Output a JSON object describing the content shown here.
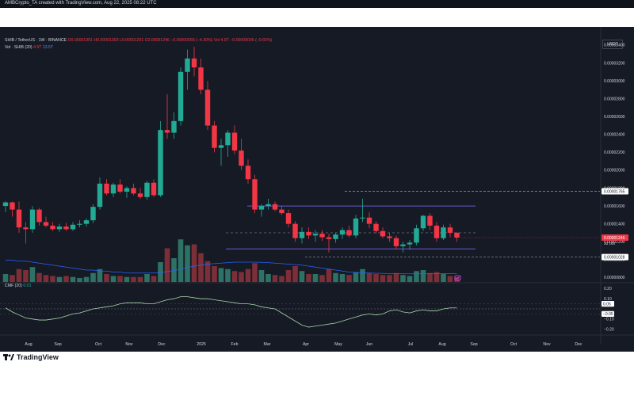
{
  "header": {
    "created": "AMBCrypto_TA created with TradingView.com, Aug 22, 2025 08:22 UTC"
  },
  "legend": {
    "pair": "SHIB / TetherUS · 1W · BINANCE",
    "ohlc": "O0.00001301 H0.00001303 L0.00001201 C0.00001246 −0.00000056 (−4.30%)",
    "vol_inline": "Vol 4.9T",
    "change": "−0.00000006 (−0.65%)",
    "vol_label": "Vol · SHIB (20)",
    "vol_v1": "4.9T",
    "vol_v2": "13.5T",
    "cmf_label": "CMF (20)",
    "cmf_value": "0.01"
  },
  "currency": "USDT",
  "colors": {
    "background": "#161a25",
    "up": "#22ab94",
    "down": "#f23645",
    "vol_up": "#2e7266",
    "vol_down": "#7d2f38",
    "range_line": "#6a5acd",
    "volume_ma": "#2962ff",
    "cmf_line": "#a5d6a7"
  },
  "price_axis": {
    "ticks": [
      "0.00003400",
      "0.00003200",
      "0.00003000",
      "0.00002800",
      "0.00002600",
      "0.00002400",
      "0.00002200",
      "0.00002000",
      "0.00001800",
      "0.00001600",
      "0.00001400",
      "0.00001200",
      "0.00001000",
      "0.00000800"
    ],
    "marker_high": "0.00001765",
    "marker_current": "0.00001246",
    "marker_countdown": "2d 16h",
    "marker_low": "0.00001028"
  },
  "cmf_axis": {
    "ticks": [
      "0.20",
      "0.10",
      "−0.10",
      "−0.20"
    ],
    "marker_a": "0.05",
    "marker_b": "−0.05"
  },
  "time_axis": {
    "labels": [
      "Aug",
      "Sep",
      "Oct",
      "Nov",
      "Dec",
      "2025",
      "Feb",
      "Mar",
      "Apr",
      "May",
      "Jun",
      "Jul",
      "Aug",
      "Sep",
      "Oct",
      "Nov",
      "Dec"
    ]
  },
  "footer": {
    "brand": "TradingView"
  },
  "chart_data": {
    "type": "candlestick",
    "timeframe": "1W",
    "y_range": [
      7.5e-06,
      3.55e-05
    ],
    "ohlc": [
      [
        1.6e-05,
        1.65e-05,
        1.53e-05,
        1.64e-05
      ],
      [
        1.64e-05,
        1.65e-05,
        1.48e-05,
        1.56e-05
      ],
      [
        1.56e-05,
        1.65e-05,
        1.3e-05,
        1.36e-05
      ],
      [
        1.36e-05,
        1.42e-05,
        1.18e-05,
        1.34e-05
      ],
      [
        1.34e-05,
        1.6e-05,
        1.3e-05,
        1.56e-05
      ],
      [
        1.56e-05,
        1.58e-05,
        1.38e-05,
        1.42e-05
      ],
      [
        1.42e-05,
        1.48e-05,
        1.36e-05,
        1.38e-05
      ],
      [
        1.38e-05,
        1.42e-05,
        1.32e-05,
        1.34e-05
      ],
      [
        1.34e-05,
        1.4e-05,
        1.31e-05,
        1.37e-05
      ],
      [
        1.37e-05,
        1.41e-05,
        1.32e-05,
        1.34e-05
      ],
      [
        1.34e-05,
        1.42e-05,
        1.32e-05,
        1.39e-05
      ],
      [
        1.39e-05,
        1.44e-05,
        1.36e-05,
        1.4e-05
      ],
      [
        1.4e-05,
        1.46e-05,
        1.37e-05,
        1.44e-05
      ],
      [
        1.44e-05,
        1.62e-05,
        1.41e-05,
        1.59e-05
      ],
      [
        1.59e-05,
        1.92e-05,
        1.56e-05,
        1.85e-05
      ],
      [
        1.85e-05,
        1.9e-05,
        1.72e-05,
        1.74e-05
      ],
      [
        1.74e-05,
        1.86e-05,
        1.7e-05,
        1.84e-05
      ],
      [
        1.84e-05,
        1.9e-05,
        1.74e-05,
        1.76e-05
      ],
      [
        1.76e-05,
        1.82e-05,
        1.69e-05,
        1.8e-05
      ],
      [
        1.8e-05,
        1.85e-05,
        1.72e-05,
        1.74e-05
      ],
      [
        1.74e-05,
        1.8e-05,
        1.68e-05,
        1.7e-05
      ],
      [
        1.7e-05,
        1.88e-05,
        1.67e-05,
        1.86e-05
      ],
      [
        1.86e-05,
        1.9e-05,
        1.7e-05,
        1.72e-05
      ],
      [
        1.72e-05,
        2.55e-05,
        1.7e-05,
        2.45e-05
      ],
      [
        2.45e-05,
        2.85e-05,
        2.35e-05,
        2.42e-05
      ],
      [
        2.42e-05,
        2.65e-05,
        2.35e-05,
        2.55e-05
      ],
      [
        2.55e-05,
        3.15e-05,
        2.5e-05,
        3.1e-05
      ],
      [
        3.1e-05,
        3.35e-05,
        2.9e-05,
        3.25e-05
      ],
      [
        3.25e-05,
        3.38e-05,
        3.05e-05,
        3.15e-05
      ],
      [
        3.15e-05,
        3.25e-05,
        2.85e-05,
        2.9e-05
      ],
      [
        2.9e-05,
        3e-05,
        2.45e-05,
        2.5e-05
      ],
      [
        2.5e-05,
        2.55e-05,
        2.2e-05,
        2.25e-05
      ],
      [
        2.25e-05,
        2.35e-05,
        2.05e-05,
        2.28e-05
      ],
      [
        2.28e-05,
        2.45e-05,
        2.15e-05,
        2.42e-05
      ],
      [
        2.42e-05,
        2.5e-05,
        2.18e-05,
        2.22e-05
      ],
      [
        2.22e-05,
        2.35e-05,
        2e-05,
        2.05e-05
      ],
      [
        2.05e-05,
        2.12e-05,
        1.85e-05,
        1.9e-05
      ],
      [
        1.9e-05,
        1.95e-05,
        1.52e-05,
        1.56e-05
      ],
      [
        1.56e-05,
        1.62e-05,
        1.48e-05,
        1.6e-05
      ],
      [
        1.6e-05,
        1.68e-05,
        1.56e-05,
        1.62e-05
      ],
      [
        1.62e-05,
        1.65e-05,
        1.54e-05,
        1.56e-05
      ],
      [
        1.56e-05,
        1.6e-05,
        1.5e-05,
        1.52e-05
      ],
      [
        1.52e-05,
        1.56e-05,
        1.36e-05,
        1.4e-05
      ],
      [
        1.4e-05,
        1.43e-05,
        1.2e-05,
        1.24e-05
      ],
      [
        1.24e-05,
        1.36e-05,
        1.18e-05,
        1.31e-05
      ],
      [
        1.31e-05,
        1.36e-05,
        1.23e-05,
        1.27e-05
      ],
      [
        1.27e-05,
        1.33e-05,
        1.2e-05,
        1.29e-05
      ],
      [
        1.29e-05,
        1.33e-05,
        1.21e-05,
        1.25e-05
      ],
      [
        1.25e-05,
        1.29e-05,
        1.08e-05,
        1.23e-05
      ],
      [
        1.23e-05,
        1.3e-05,
        1.19e-05,
        1.28e-05
      ],
      [
        1.28e-05,
        1.36e-05,
        1.23e-05,
        1.33e-05
      ],
      [
        1.33e-05,
        1.38e-05,
        1.25e-05,
        1.27e-05
      ],
      [
        1.27e-05,
        1.5e-05,
        1.24e-05,
        1.46e-05
      ],
      [
        1.46e-05,
        1.68e-05,
        1.42e-05,
        1.47e-05
      ],
      [
        1.47e-05,
        1.53e-05,
        1.35e-05,
        1.4e-05
      ],
      [
        1.4e-05,
        1.43e-05,
        1.29e-05,
        1.32e-05
      ],
      [
        1.32e-05,
        1.36e-05,
        1.24e-05,
        1.26e-05
      ],
      [
        1.26e-05,
        1.3e-05,
        1.2e-05,
        1.24e-05
      ],
      [
        1.24e-05,
        1.27e-05,
        1.12e-05,
        1.15e-05
      ],
      [
        1.15e-05,
        1.2e-05,
        1.08e-05,
        1.17e-05
      ],
      [
        1.17e-05,
        1.22e-05,
        1.11e-05,
        1.19e-05
      ],
      [
        1.19e-05,
        1.39e-05,
        1.16e-05,
        1.35e-05
      ],
      [
        1.35e-05,
        1.5e-05,
        1.32e-05,
        1.49e-05
      ],
      [
        1.49e-05,
        1.52e-05,
        1.33e-05,
        1.38e-05
      ],
      [
        1.38e-05,
        1.42e-05,
        1.2e-05,
        1.24e-05
      ],
      [
        1.24e-05,
        1.39e-05,
        1.22e-05,
        1.36e-05
      ],
      [
        1.36e-05,
        1.4e-05,
        1.25e-05,
        1.3e-05
      ],
      [
        1.301e-05,
        1.303e-05,
        1.201e-05,
        1.246e-05
      ]
    ],
    "volume": [
      0.8,
      0.7,
      1.3,
      1.2,
      1.5,
      0.9,
      0.7,
      0.6,
      0.5,
      0.6,
      0.5,
      0.4,
      0.5,
      0.9,
      1.3,
      0.8,
      0.6,
      0.6,
      0.5,
      0.5,
      0.5,
      0.8,
      0.6,
      2.0,
      3.4,
      2.4,
      4.3,
      3.7,
      3.8,
      2.9,
      2.1,
      1.6,
      1.4,
      1.3,
      1.1,
      1.0,
      1.3,
      1.9,
      1.2,
      0.8,
      0.7,
      0.6,
      1.2,
      1.6,
      1.1,
      0.8,
      0.8,
      0.7,
      1.3,
      0.9,
      0.8,
      0.7,
      1.0,
      1.3,
      0.9,
      0.8,
      0.7,
      0.7,
      0.9,
      0.7,
      0.6,
      1.1,
      1.2,
      0.9,
      1.0,
      0.8,
      0.6,
      0.5
    ],
    "volume_ma": [
      2.2,
      2.2,
      2.1,
      2.1,
      2.0,
      1.9,
      1.8,
      1.7,
      1.6,
      1.5,
      1.4,
      1.3,
      1.2,
      1.2,
      1.1,
      1.1,
      1.0,
      1.0,
      0.9,
      0.9,
      0.9,
      0.9,
      0.9,
      0.95,
      1.05,
      1.15,
      1.3,
      1.45,
      1.6,
      1.7,
      1.8,
      1.85,
      1.9,
      1.95,
      2.0,
      2.0,
      2.0,
      2.0,
      1.98,
      1.95,
      1.9,
      1.85,
      1.8,
      1.75,
      1.7,
      1.6,
      1.5,
      1.4,
      1.3,
      1.2,
      1.1,
      1.0,
      0.95,
      0.92,
      0.9,
      0.88,
      0.86,
      0.85,
      0.84,
      0.83,
      0.82,
      0.82,
      0.82,
      0.83,
      0.84,
      0.84,
      0.84,
      0.84
    ],
    "cmf": [
      0.01,
      -0.03,
      -0.06,
      -0.09,
      -0.1,
      -0.11,
      -0.11,
      -0.1,
      -0.09,
      -0.07,
      -0.05,
      -0.04,
      -0.02,
      0.0,
      0.01,
      0.02,
      0.03,
      0.05,
      0.06,
      0.06,
      0.06,
      0.05,
      0.05,
      0.07,
      0.09,
      0.1,
      0.12,
      0.12,
      0.11,
      0.1,
      0.1,
      0.09,
      0.08,
      0.07,
      0.06,
      0.05,
      0.05,
      0.04,
      0.02,
      0.01,
      0.0,
      -0.04,
      -0.08,
      -0.12,
      -0.16,
      -0.18,
      -0.17,
      -0.16,
      -0.15,
      -0.14,
      -0.12,
      -0.1,
      -0.08,
      -0.06,
      -0.05,
      -0.06,
      -0.05,
      -0.02,
      -0.01,
      -0.03,
      -0.04,
      -0.02,
      -0.01,
      -0.02,
      -0.02,
      0.0,
      0.01,
      0.01
    ],
    "cmf_range": [
      -0.25,
      0.25
    ],
    "support_level": 1.028e-05,
    "resistance_level": 1.6e-05,
    "mid_level": 1.3e-05,
    "lower_band": 1.12e-05,
    "high_marker_level": 1.765e-05
  }
}
